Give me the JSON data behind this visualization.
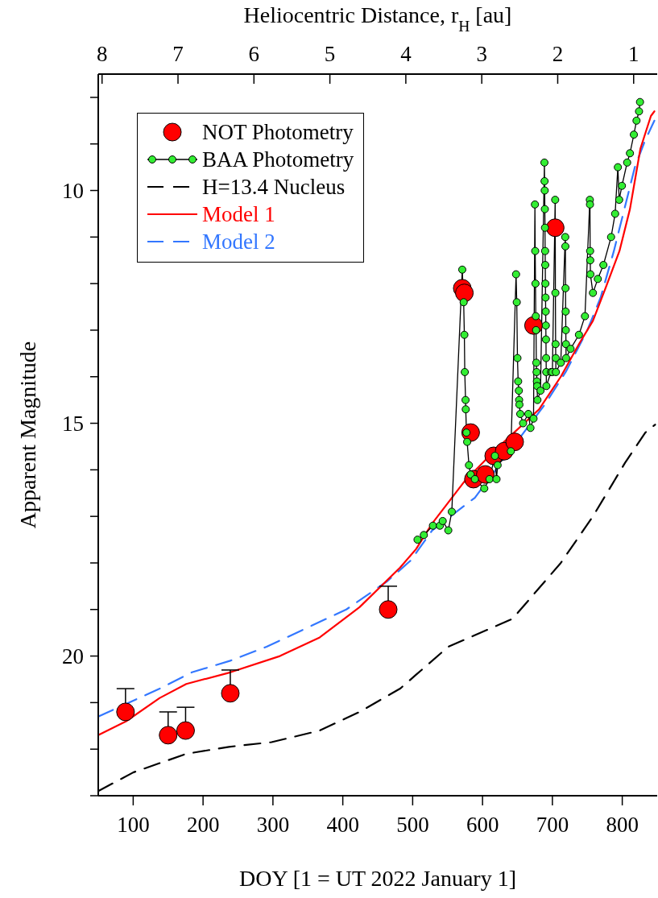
{
  "chart_data": {
    "type": "scatter",
    "xlabel": "DOY [1 = UT 2022 January 1]",
    "ylabel": "Apparent Magnitude",
    "x2label": "Heliocentric Distance, r$_{H}$ [au]",
    "xlim": [
      50,
      850
    ],
    "xticks": [
      100,
      200,
      300,
      400,
      500,
      600,
      700,
      800
    ],
    "x2lim": [
      8.05,
      0.69
    ],
    "x2ticks": [
      8,
      7,
      6,
      5,
      4,
      3,
      2,
      1
    ],
    "ylim": [
      23,
      7.5
    ],
    "yticks": [
      {
        "value": 8,
        "label": null
      },
      {
        "value": 9,
        "label": null
      },
      10,
      {
        "value": 11,
        "label": null
      },
      {
        "value": 12,
        "label": null
      },
      {
        "value": 13,
        "label": null
      },
      {
        "value": 14,
        "label": null
      },
      15,
      {
        "value": 16,
        "label": null
      },
      {
        "value": 17,
        "label": null
      },
      {
        "value": 18,
        "label": null
      },
      {
        "value": 19,
        "label": null
      },
      20,
      {
        "value": 21,
        "label": null
      },
      {
        "value": 22,
        "label": null
      },
      {
        "value": 23,
        "label": null
      }
    ],
    "grid": false,
    "legend": "top left",
    "series": [
      {
        "name": "NOT Photometry",
        "marker": "circle",
        "color": "#ff0000",
        "x": [
          89,
          150,
          175,
          239,
          465,
          571,
          574,
          583,
          587,
          604,
          616,
          631,
          646,
          673,
          704
        ],
        "values": [
          21.2,
          21.7,
          21.6,
          20.8,
          19.0,
          12.1,
          12.2,
          15.2,
          16.2,
          16.1,
          15.7,
          15.6,
          15.4,
          12.9,
          10.8
        ],
        "errors": [
          [
            20.7,
            21.2
          ],
          [
            21.2,
            21.7
          ],
          [
            21.1,
            21.6
          ],
          [
            20.3,
            20.8
          ],
          [
            18.5,
            19.0
          ],
          null,
          null,
          null,
          null,
          null,
          null,
          null,
          null,
          null,
          null
        ]
      },
      {
        "name": "BAA Photometry",
        "type": "line",
        "marker": "circle",
        "line_style": "solid",
        "color": "#33ee33",
        "x": [
          507,
          516,
          529,
          539,
          543,
          551,
          556,
          571,
          573,
          574,
          574.6,
          575.7,
          576,
          577,
          578,
          580.6,
          583,
          589,
          602.5,
          610,
          617.7,
          620,
          621.6,
          640.5,
          648,
          649,
          650,
          651,
          652,
          652.4,
          652.8,
          654,
          658,
          665.6,
          668.6,
          673,
          675,
          675.4,
          675.8,
          676.2,
          676.6,
          677,
          677.4,
          677.8,
          678.2,
          678.6,
          683,
          688.6,
          688.8,
          689,
          689.2,
          689.4,
          689.6,
          689.8,
          690,
          690.2,
          690.4,
          690.6,
          690.8,
          691,
          691.2,
          691.4,
          698,
          700,
          704,
          704.3,
          704.6,
          704.8,
          705,
          712,
          718.4,
          718.6,
          718.8,
          719,
          719.2,
          719.4,
          719.6,
          726,
          738,
          746.6,
          753.6,
          753.8,
          754,
          754.2,
          754.4,
          758,
          765,
          773,
          784,
          789.8,
          793.7,
          795.6,
          799.5,
          807,
          811,
          816.6,
          820.4,
          824,
          825.4
        ],
        "values": [
          17.5,
          17.4,
          17.2,
          17.2,
          17.1,
          17.3,
          16.9,
          11.7,
          12.4,
          13.1,
          13.9,
          14.5,
          14.7,
          15.2,
          15.4,
          15.9,
          16.1,
          16.2,
          16.4,
          16.2,
          15.7,
          16.2,
          15.9,
          15.6,
          11.8,
          12.4,
          13.6,
          14.1,
          14.3,
          14.5,
          14.6,
          14.8,
          15.0,
          14.8,
          15.1,
          14.9,
          10.3,
          11.3,
          12.0,
          12.7,
          13.0,
          13.7,
          13.9,
          14.1,
          14.2,
          14.5,
          14.3,
          9.4,
          9.8,
          10.0,
          10.4,
          10.8,
          11.3,
          11.6,
          12.0,
          12.3,
          12.6,
          12.9,
          13.2,
          13.6,
          13.9,
          14.2,
          13.9,
          13.9,
          10.2,
          12.2,
          13.3,
          13.6,
          13.9,
          13.7,
          11.0,
          11.2,
          12.1,
          12.6,
          13.0,
          13.3,
          13.6,
          13.4,
          13.1,
          12.7,
          10.2,
          10.3,
          11.3,
          11.5,
          11.8,
          12.2,
          11.9,
          11.6,
          11.0,
          10.5,
          9.5,
          10.2,
          9.9,
          9.4,
          9.2,
          8.8,
          8.5,
          8.3,
          8.1
        ]
      },
      {
        "name": "H=13.4 Nucleus",
        "type": "line",
        "line_style": "dashed",
        "color": "#000000",
        "x": [
          50,
          100,
          176,
          237,
          298,
          367,
          424,
          482,
          505,
          551,
          643,
          712,
          758,
          804,
          833,
          847
        ],
        "values": [
          22.9,
          22.5,
          22.1,
          21.95,
          21.85,
          21.6,
          21.2,
          20.7,
          20.4,
          19.8,
          19.2,
          18.0,
          17.0,
          15.85,
          15.2,
          15.03
        ]
      },
      {
        "name": "Model 1",
        "type": "line",
        "line_style": "solid",
        "color": "#ff0000",
        "x": [
          50,
          90,
          138,
          176,
          239,
          310,
          367,
          424,
          482,
          505,
          528,
          574,
          620,
          681,
          712,
          738,
          758,
          776,
          796,
          811,
          826,
          841,
          846
        ],
        "values": [
          21.7,
          21.4,
          20.9,
          20.6,
          20.35,
          20.0,
          19.6,
          18.95,
          18.1,
          17.7,
          17.15,
          16.25,
          15.55,
          14.7,
          14.0,
          13.3,
          12.8,
          12.1,
          11.3,
          10.4,
          9.1,
          8.4,
          8.3
        ]
      },
      {
        "name": "Model 2",
        "type": "line",
        "line_style": "dashed",
        "color": "#3377ff",
        "x": [
          50,
          138,
          184,
          239,
          291,
          348,
          405,
          463,
          497,
          528,
          589,
          689,
          719,
          750,
          769,
          788,
          803,
          818,
          832,
          846
        ],
        "values": [
          21.3,
          20.7,
          20.35,
          20.1,
          19.8,
          19.4,
          19.0,
          18.4,
          17.95,
          17.3,
          16.6,
          14.6,
          13.9,
          13.0,
          12.3,
          11.3,
          10.4,
          9.5,
          8.95,
          8.5
        ]
      }
    ]
  }
}
